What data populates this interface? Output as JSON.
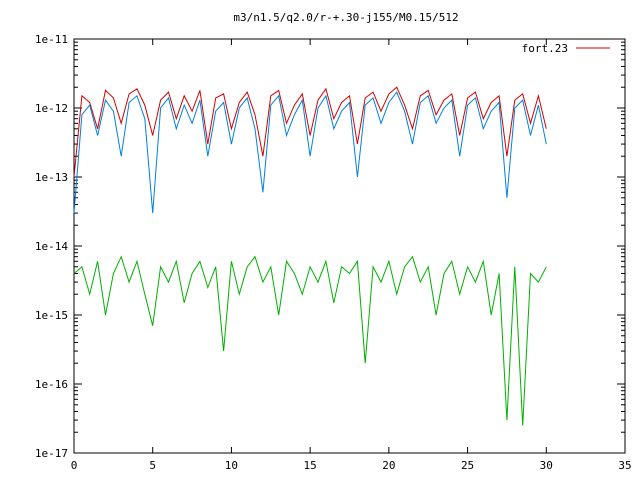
{
  "chart_data": {
    "type": "line",
    "title": "m3/n1.5/q2.0/r-+.30-j155/M0.15/512",
    "xlabel": "",
    "ylabel": "",
    "xlim": [
      0,
      35
    ],
    "ylim": [
      1e-17,
      1e-11
    ],
    "yscale": "log",
    "grid": false,
    "legend_placement": "top-right",
    "x_ticks": [
      "0",
      "5",
      "10",
      "15",
      "20",
      "25",
      "30",
      "35"
    ],
    "y_ticks": [
      "1e-11",
      "1e-12",
      "1e-13",
      "1e-14",
      "1e-15",
      "1e-16",
      "1e-17"
    ],
    "series": [
      {
        "name": "fort.23",
        "color": "#d40000",
        "x": [
          0.0,
          0.5,
          1.0,
          1.5,
          2.0,
          2.5,
          3.0,
          3.5,
          4.0,
          4.5,
          5.0,
          5.5,
          6.0,
          6.5,
          7.0,
          7.5,
          8.0,
          8.5,
          9.0,
          9.5,
          10.0,
          10.5,
          11.0,
          11.5,
          12.0,
          12.5,
          13.0,
          13.5,
          14.0,
          14.5,
          15.0,
          15.5,
          16.0,
          16.5,
          17.0,
          17.5,
          18.0,
          18.5,
          19.0,
          19.5,
          20.0,
          20.5,
          21.0,
          21.5,
          22.0,
          22.5,
          23.0,
          23.5,
          24.0,
          24.5,
          25.0,
          25.5,
          26.0,
          26.5,
          27.0,
          27.5,
          28.0,
          28.5,
          29.0,
          29.5,
          30.0
        ],
        "y": [
          1e-13,
          1.5e-12,
          1.2e-12,
          5e-13,
          1.8e-12,
          1.4e-12,
          6e-13,
          1.6e-12,
          1.9e-12,
          1.1e-12,
          4e-13,
          1.3e-12,
          1.7e-12,
          7e-13,
          1.5e-12,
          9e-13,
          1.8e-12,
          3e-13,
          1.4e-12,
          1.6e-12,
          5e-13,
          1.2e-12,
          1.7e-12,
          8e-13,
          2e-13,
          1.5e-12,
          1.8e-12,
          6e-13,
          1.1e-12,
          1.6e-12,
          4e-13,
          1.3e-12,
          1.9e-12,
          7e-13,
          1.2e-12,
          1.5e-12,
          3e-13,
          1.4e-12,
          1.7e-12,
          9e-13,
          1.6e-12,
          2e-12,
          1.1e-12,
          5e-13,
          1.5e-12,
          1.8e-12,
          8e-13,
          1.3e-12,
          1.6e-12,
          4e-13,
          1.4e-12,
          1.7e-12,
          7e-13,
          1.2e-12,
          1.5e-12,
          2e-13,
          1.3e-12,
          1.6e-12,
          6e-13,
          1.5e-12,
          5e-13
        ]
      },
      {
        "name": "",
        "color": "#0080e0",
        "x": [
          0.0,
          0.5,
          1.0,
          1.5,
          2.0,
          2.5,
          3.0,
          3.5,
          4.0,
          4.5,
          5.0,
          5.5,
          6.0,
          6.5,
          7.0,
          7.5,
          8.0,
          8.5,
          9.0,
          9.5,
          10.0,
          10.5,
          11.0,
          11.5,
          12.0,
          12.5,
          13.0,
          13.5,
          14.0,
          14.5,
          15.0,
          15.5,
          16.0,
          16.5,
          17.0,
          17.5,
          18.0,
          18.5,
          19.0,
          19.5,
          20.0,
          20.5,
          21.0,
          21.5,
          22.0,
          22.5,
          23.0,
          23.5,
          24.0,
          24.5,
          25.0,
          25.5,
          26.0,
          26.5,
          27.0,
          27.5,
          28.0,
          28.5,
          29.0,
          29.5,
          30.0
        ],
        "y": [
          3e-14,
          8e-13,
          1.1e-12,
          4e-13,
          1.3e-12,
          9e-13,
          2e-13,
          1.2e-12,
          1.5e-12,
          7e-13,
          3e-14,
          1e-12,
          1.4e-12,
          5e-13,
          1.1e-12,
          6e-13,
          1.3e-12,
          2e-13,
          9e-13,
          1.2e-12,
          3e-13,
          1e-12,
          1.4e-12,
          5e-13,
          6e-14,
          1.1e-12,
          1.5e-12,
          4e-13,
          8e-13,
          1.3e-12,
          2e-13,
          1e-12,
          1.5e-12,
          5e-13,
          9e-13,
          1.2e-12,
          1e-13,
          1.1e-12,
          1.4e-12,
          6e-13,
          1.2e-12,
          1.7e-12,
          9e-13,
          3e-13,
          1.2e-12,
          1.5e-12,
          6e-13,
          1e-12,
          1.3e-12,
          2e-13,
          1.1e-12,
          1.4e-12,
          5e-13,
          9e-13,
          1.2e-12,
          5e-14,
          1e-12,
          1.3e-12,
          4e-13,
          1.1e-12,
          3e-13
        ]
      },
      {
        "name": "",
        "color": "#00b000",
        "x": [
          0.0,
          0.5,
          1.0,
          1.5,
          2.0,
          2.5,
          3.0,
          3.5,
          4.0,
          4.5,
          5.0,
          5.5,
          6.0,
          6.5,
          7.0,
          7.5,
          8.0,
          8.5,
          9.0,
          9.5,
          10.0,
          10.5,
          11.0,
          11.5,
          12.0,
          12.5,
          13.0,
          13.5,
          14.0,
          14.5,
          15.0,
          15.5,
          16.0,
          16.5,
          17.0,
          17.5,
          18.0,
          18.5,
          19.0,
          19.5,
          20.0,
          20.5,
          21.0,
          21.5,
          22.0,
          22.5,
          23.0,
          23.5,
          24.0,
          24.5,
          25.0,
          25.5,
          26.0,
          26.5,
          27.0,
          27.5,
          28.0,
          28.5,
          29.0,
          29.5,
          30.0
        ],
        "y": [
          4e-15,
          5e-15,
          2e-15,
          6e-15,
          1e-15,
          4e-15,
          7e-15,
          3e-15,
          6e-15,
          2e-15,
          7e-16,
          5e-15,
          3e-15,
          6e-15,
          1.5e-15,
          4e-15,
          6e-15,
          2.5e-15,
          5e-15,
          3e-16,
          6e-15,
          2e-15,
          5e-15,
          7e-15,
          3e-15,
          5e-15,
          1e-15,
          6e-15,
          4e-15,
          2e-15,
          5e-15,
          3e-15,
          6e-15,
          1.5e-15,
          5e-15,
          4e-15,
          6e-15,
          2e-16,
          5e-15,
          3e-15,
          6e-15,
          2e-15,
          5e-15,
          7e-15,
          3e-15,
          5e-15,
          1e-15,
          4e-15,
          6e-15,
          2e-15,
          5e-15,
          3e-15,
          6e-15,
          1e-15,
          4e-15,
          3e-17,
          5e-15,
          2.5e-17,
          4e-15,
          3e-15,
          5e-15
        ]
      }
    ]
  }
}
